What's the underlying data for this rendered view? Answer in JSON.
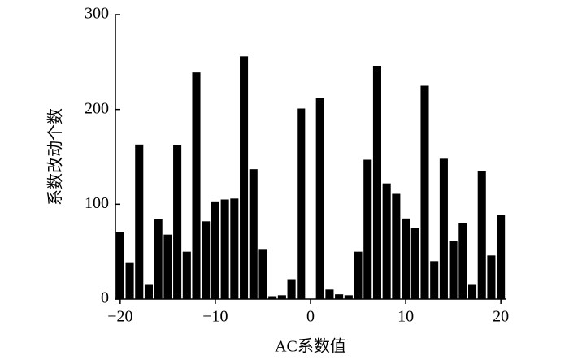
{
  "chart_data": {
    "type": "bar",
    "xlabel": "AC系数值",
    "ylabel": "系数改动个数",
    "x": [
      -20,
      -19,
      -18,
      -17,
      -16,
      -15,
      -14,
      -13,
      -12,
      -11,
      -10,
      -9,
      -8,
      -7,
      -6,
      -5,
      -4,
      -3,
      -2,
      -1,
      0,
      1,
      2,
      3,
      4,
      5,
      6,
      7,
      8,
      9,
      10,
      11,
      12,
      13,
      14,
      15,
      16,
      17,
      18,
      19,
      20
    ],
    "values": [
      71,
      38,
      163,
      15,
      84,
      68,
      162,
      50,
      239,
      82,
      103,
      105,
      106,
      256,
      137,
      52,
      3,
      4,
      21,
      201,
      0,
      212,
      10,
      5,
      4,
      50,
      147,
      246,
      122,
      111,
      85,
      75,
      225,
      40,
      148,
      61,
      80,
      15,
      135,
      46,
      89
    ],
    "color": "#000000",
    "xlim": [
      -20.5,
      20.5
    ],
    "xticks": [
      {
        "value": -20,
        "label": "−20"
      },
      {
        "value": -10,
        "label": "−10"
      },
      0,
      10,
      20
    ],
    "ylim": [
      0,
      300
    ],
    "yticks": [
      0,
      100,
      200,
      300
    ],
    "grid": false
  }
}
